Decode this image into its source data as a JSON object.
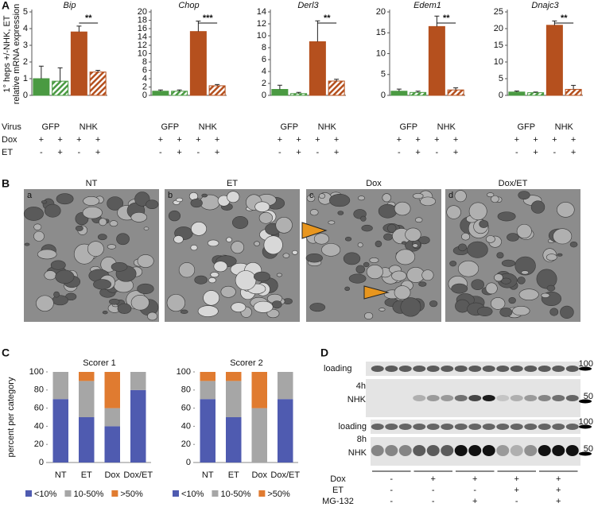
{
  "panels": {
    "a": "A",
    "b": "B",
    "c": "C",
    "d": "D"
  },
  "chart_data": [
    {
      "type": "bar",
      "title": "Bip",
      "ylabel": [
        "1° heps +/-NHK, ET",
        "relative mRNA expression"
      ],
      "row_headers": [
        "Virus",
        "Dox",
        "ET"
      ],
      "categories": [
        null,
        null,
        null,
        null
      ],
      "values": [
        1.0,
        0.85,
        3.8,
        1.4
      ],
      "errors": [
        0.75,
        0.8,
        0.35,
        0.1
      ],
      "colors": [
        "#4a9a42",
        "#4a9a42",
        "#b5501e",
        "#b5501e"
      ],
      "hatched": [
        false,
        true,
        false,
        true
      ],
      "ylim": [
        0,
        5
      ],
      "yticks": [
        0,
        1,
        2,
        3,
        4,
        5
      ],
      "groups": [
        "GFP",
        "NHK"
      ],
      "dox": [
        "+",
        "+",
        "+",
        "+"
      ],
      "et": [
        "-",
        "+",
        "-",
        "+"
      ],
      "significance": "**"
    },
    {
      "type": "bar",
      "title": "Chop",
      "categories": [
        null,
        null,
        null,
        null
      ],
      "values": [
        1.0,
        1.0,
        15.3,
        2.3
      ],
      "errors": [
        0.3,
        0.3,
        2.5,
        0.3
      ],
      "colors": [
        "#4a9a42",
        "#4a9a42",
        "#b5501e",
        "#b5501e"
      ],
      "hatched": [
        false,
        true,
        false,
        true
      ],
      "ylim": [
        0,
        20
      ],
      "yticks": [
        0,
        2,
        4,
        6,
        8,
        10,
        12,
        14,
        16,
        18,
        20
      ],
      "groups": [
        "GFP",
        "NHK"
      ],
      "dox": [
        "+",
        "+",
        "+",
        "+"
      ],
      "et": [
        "-",
        "+",
        "-",
        "+"
      ],
      "significance": "***"
    },
    {
      "type": "bar",
      "title": "Derl3",
      "categories": [
        null,
        null,
        null,
        null
      ],
      "values": [
        1.0,
        0.3,
        9.0,
        2.4
      ],
      "errors": [
        0.7,
        0.2,
        3.5,
        0.3
      ],
      "colors": [
        "#4a9a42",
        "#4a9a42",
        "#b5501e",
        "#b5501e"
      ],
      "hatched": [
        false,
        true,
        false,
        true
      ],
      "ylim": [
        0,
        14
      ],
      "yticks": [
        0,
        2,
        4,
        6,
        8,
        10,
        12,
        14
      ],
      "groups": [
        "GFP",
        "NHK"
      ],
      "dox": [
        "+",
        "+",
        "+",
        "+"
      ],
      "et": [
        "-",
        "+",
        "-",
        "+"
      ],
      "significance": "**"
    },
    {
      "type": "bar",
      "title": "Edem1",
      "categories": [
        null,
        null,
        null,
        null
      ],
      "values": [
        1.0,
        0.7,
        16.5,
        1.3
      ],
      "errors": [
        0.5,
        0.3,
        2.5,
        0.5
      ],
      "colors": [
        "#4a9a42",
        "#4a9a42",
        "#b5501e",
        "#b5501e"
      ],
      "hatched": [
        false,
        true,
        false,
        true
      ],
      "ylim": [
        0,
        20
      ],
      "yticks": [
        0,
        5,
        10,
        15,
        20
      ],
      "groups": [
        "GFP",
        "NHK"
      ],
      "dox": [
        "+",
        "+",
        "+",
        "+"
      ],
      "et": [
        "-",
        "+",
        "-",
        "+"
      ],
      "significance": "**"
    },
    {
      "type": "bar",
      "title": "Dnajc3",
      "categories": [
        null,
        null,
        null,
        null
      ],
      "values": [
        1.0,
        0.8,
        21,
        1.8
      ],
      "errors": [
        0.3,
        0.2,
        1.3,
        1.2
      ],
      "colors": [
        "#4a9a42",
        "#4a9a42",
        "#b5501e",
        "#b5501e"
      ],
      "hatched": [
        false,
        true,
        false,
        true
      ],
      "ylim": [
        0,
        25
      ],
      "yticks": [
        0,
        5,
        10,
        15,
        20,
        25
      ],
      "groups": [
        "GFP",
        "NHK"
      ],
      "dox": [
        "+",
        "+",
        "+",
        "+"
      ],
      "et": [
        "-",
        "+",
        "-",
        "+"
      ],
      "significance": "**"
    },
    {
      "type": "stacked_bar",
      "title": "Scorer 1",
      "ylabel": "percent per category",
      "legend": "bottom",
      "categories": [
        "NT",
        "ET",
        "Dox",
        "Dox/ET"
      ],
      "series": [
        {
          "name": "<10%",
          "color": "#4f5bb0",
          "values": [
            70,
            50,
            40,
            80
          ]
        },
        {
          "name": "10-50%",
          "color": "#a6a6a6",
          "values": [
            30,
            40,
            20,
            20
          ]
        },
        {
          "name": ">50%",
          "color": "#e07b30",
          "values": [
            0,
            10,
            40,
            0
          ]
        }
      ],
      "ylim": [
        0,
        100
      ],
      "yticks": [
        0,
        20,
        40,
        60,
        80,
        100
      ]
    },
    {
      "type": "stacked_bar",
      "title": "Scorer 2",
      "legend": "bottom",
      "categories": [
        "NT",
        "ET",
        "Dox",
        "Dox/ET"
      ],
      "series": [
        {
          "name": "<10%",
          "color": "#4f5bb0",
          "values": [
            70,
            50,
            0,
            70
          ]
        },
        {
          "name": "10-50%",
          "color": "#a6a6a6",
          "values": [
            20,
            40,
            60,
            30
          ]
        },
        {
          "name": ">50%",
          "color": "#e07b30",
          "values": [
            10,
            10,
            40,
            0
          ]
        }
      ],
      "ylim": [
        0,
        100
      ],
      "yticks": [
        0,
        20,
        40,
        60,
        80,
        100
      ]
    }
  ],
  "panel_b": {
    "images": [
      {
        "title": "NT",
        "letter": "a"
      },
      {
        "title": "ET",
        "letter": "b"
      },
      {
        "title": "Dox",
        "letter": "c"
      },
      {
        "title": "Dox/ET",
        "letter": "d"
      }
    ]
  },
  "panel_d": {
    "left_labels": [
      "loading",
      "4h",
      "NHK",
      "loading",
      "8h",
      "NHK"
    ],
    "markers": [
      "100",
      "50",
      "100",
      "50"
    ],
    "conditions": [
      {
        "name": "Dox",
        "signs": [
          "-",
          "+",
          "+",
          "+",
          "+"
        ]
      },
      {
        "name": "ET",
        "signs": [
          "-",
          "-",
          "-",
          "+",
          "+"
        ]
      },
      {
        "name": "MG-132",
        "signs": [
          "-",
          "-",
          "+",
          "-",
          "+"
        ]
      }
    ]
  }
}
